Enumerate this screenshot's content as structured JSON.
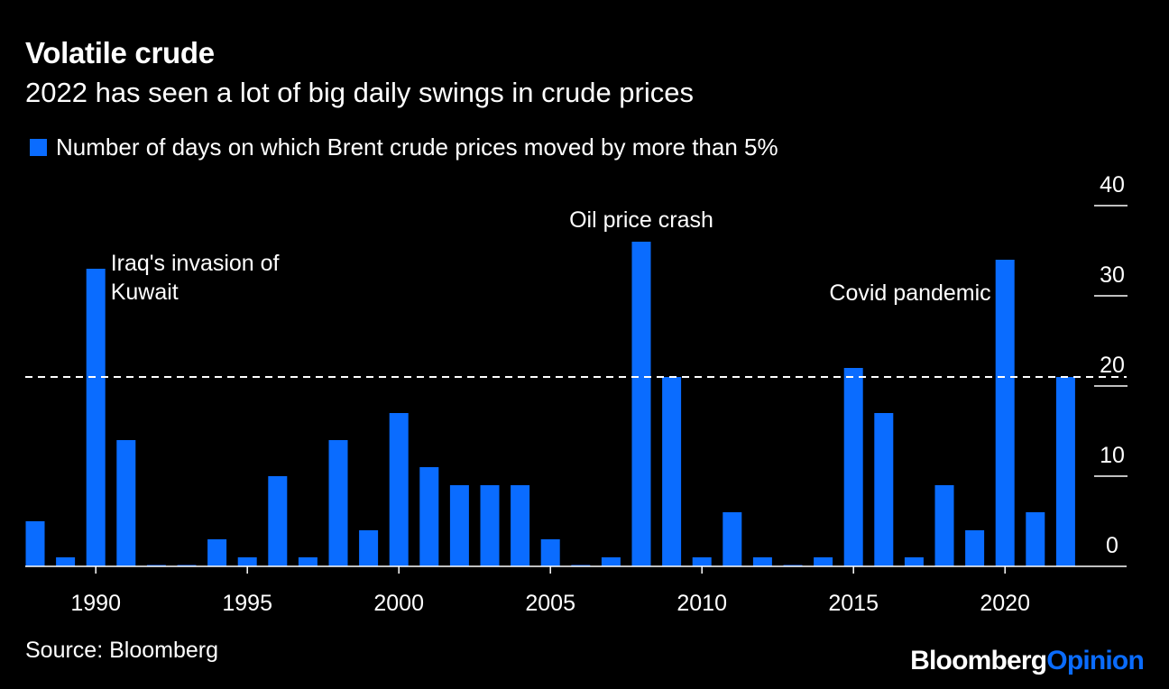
{
  "title": "Volatile crude",
  "subtitle": "2022 has seen a lot of big daily swings in crude prices",
  "source": "Source: Bloomberg",
  "brand": {
    "part1": "Bloomberg",
    "part2": "Opinion"
  },
  "colors": {
    "bar": "#0a6cff",
    "background": "#000000",
    "text": "#ffffff",
    "brand_accent": "#0a6cff"
  },
  "chart_data": {
    "type": "bar",
    "legend": "Number of days on which Brent crude prices moved by more than 5%",
    "x": [
      1988,
      1989,
      1990,
      1991,
      1992,
      1993,
      1994,
      1995,
      1996,
      1997,
      1998,
      1999,
      2000,
      2001,
      2002,
      2003,
      2004,
      2005,
      2006,
      2007,
      2008,
      2009,
      2010,
      2011,
      2012,
      2013,
      2014,
      2015,
      2016,
      2017,
      2018,
      2019,
      2020,
      2021,
      2022
    ],
    "values": [
      5,
      1,
      33,
      14,
      0,
      0,
      3,
      1,
      10,
      1,
      14,
      4,
      17,
      11,
      9,
      9,
      9,
      3,
      0,
      1,
      36,
      21,
      1,
      6,
      1,
      0,
      1,
      22,
      17,
      1,
      9,
      4,
      34,
      6,
      21
    ],
    "ylim": [
      0,
      40
    ],
    "yticks": [
      0,
      10,
      20,
      30,
      40
    ],
    "xticks": [
      1990,
      1995,
      2000,
      2005,
      2010,
      2015,
      2020
    ],
    "reference_line": {
      "value": 21,
      "style": "dashed"
    },
    "annotations": [
      {
        "year": 1990,
        "lines": [
          "Iraq's invasion of",
          "Kuwait"
        ],
        "align": "left"
      },
      {
        "year": 2008,
        "lines": [
          "Oil price crash"
        ],
        "align": "center"
      },
      {
        "year": 2020,
        "lines": [
          "Covid pandemic"
        ],
        "align": "right"
      }
    ]
  }
}
